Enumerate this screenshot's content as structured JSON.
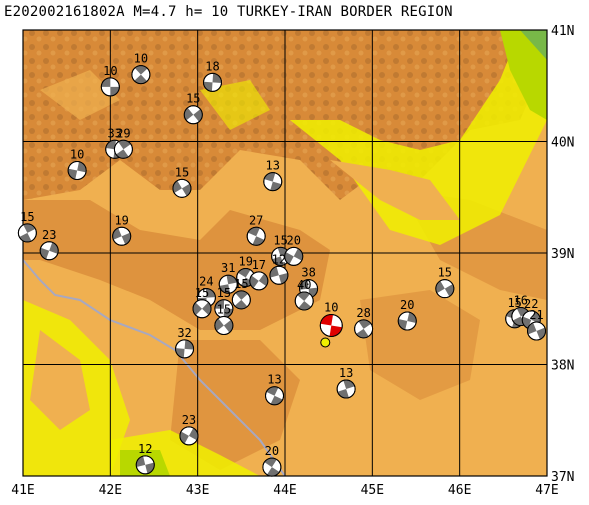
{
  "title": "E202002161802A M=4.7 h= 10 TURKEY-IRAN BORDER REGION",
  "colors": {
    "lowland": "#f0f000",
    "lowland_green": "#b8d800",
    "plain": "#f0b050",
    "upland": "#d88a38",
    "mountain": "#c07830",
    "grid": "#000000",
    "border": "#a8a8c0",
    "mechanism_fill": "#707070",
    "main_event_fill": "#e00000"
  },
  "map": {
    "lon_range": [
      41,
      47
    ],
    "lat_range": [
      37,
      41
    ],
    "x_ticks": [
      "41E",
      "42E",
      "43E",
      "44E",
      "45E",
      "46E",
      "47E"
    ],
    "y_ticks": [
      "41N",
      "40N",
      "39N",
      "38N",
      "37N"
    ]
  },
  "events": [
    {
      "lon": 42.0,
      "lat": 40.49,
      "depth": "10"
    },
    {
      "lon": 42.35,
      "lat": 40.6,
      "depth": "10"
    },
    {
      "lon": 43.17,
      "lat": 40.53,
      "depth": "18"
    },
    {
      "lon": 42.95,
      "lat": 40.24,
      "depth": "15"
    },
    {
      "lon": 42.05,
      "lat": 39.93,
      "depth": "33"
    },
    {
      "lon": 42.15,
      "lat": 39.93,
      "depth": "29"
    },
    {
      "lon": 41.62,
      "lat": 39.74,
      "depth": "10"
    },
    {
      "lon": 42.82,
      "lat": 39.58,
      "depth": "15"
    },
    {
      "lon": 43.86,
      "lat": 39.64,
      "depth": "13"
    },
    {
      "lon": 41.05,
      "lat": 39.18,
      "depth": "15"
    },
    {
      "lon": 41.3,
      "lat": 39.02,
      "depth": "23"
    },
    {
      "lon": 42.13,
      "lat": 39.15,
      "depth": "19"
    },
    {
      "lon": 43.67,
      "lat": 39.15,
      "depth": "27"
    },
    {
      "lon": 43.95,
      "lat": 38.97,
      "depth": "15"
    },
    {
      "lon": 44.1,
      "lat": 38.97,
      "depth": "20"
    },
    {
      "lon": 43.93,
      "lat": 38.8,
      "depth": "12"
    },
    {
      "lon": 43.55,
      "lat": 38.78,
      "depth": "19"
    },
    {
      "lon": 43.35,
      "lat": 38.72,
      "depth": "31"
    },
    {
      "lon": 43.7,
      "lat": 38.75,
      "depth": "17"
    },
    {
      "lon": 44.27,
      "lat": 38.68,
      "depth": "38"
    },
    {
      "lon": 44.22,
      "lat": 38.57,
      "depth": "40"
    },
    {
      "lon": 43.1,
      "lat": 38.6,
      "depth": "24"
    },
    {
      "lon": 43.05,
      "lat": 38.5,
      "depth": "15"
    },
    {
      "lon": 43.3,
      "lat": 38.5,
      "depth": "15"
    },
    {
      "lon": 43.5,
      "lat": 38.58,
      "depth": "15"
    },
    {
      "lon": 42.85,
      "lat": 38.14,
      "depth": "32"
    },
    {
      "lon": 43.3,
      "lat": 38.35,
      "depth": "15"
    },
    {
      "lon": 44.53,
      "lat": 38.35,
      "depth": "10",
      "main": true
    },
    {
      "lon": 44.9,
      "lat": 38.32,
      "depth": "28"
    },
    {
      "lon": 45.4,
      "lat": 38.39,
      "depth": "20"
    },
    {
      "lon": 45.83,
      "lat": 38.68,
      "depth": "15"
    },
    {
      "lon": 46.63,
      "lat": 38.41,
      "depth": "15"
    },
    {
      "lon": 46.7,
      "lat": 38.43,
      "depth": "16"
    },
    {
      "lon": 46.82,
      "lat": 38.4,
      "depth": "22"
    },
    {
      "lon": 46.88,
      "lat": 38.3,
      "depth": "21"
    },
    {
      "lon": 43.88,
      "lat": 37.72,
      "depth": "13"
    },
    {
      "lon": 44.7,
      "lat": 37.78,
      "depth": "13"
    },
    {
      "lon": 42.9,
      "lat": 37.36,
      "depth": "23"
    },
    {
      "lon": 42.4,
      "lat": 37.1,
      "depth": "12"
    },
    {
      "lon": 43.85,
      "lat": 37.08,
      "depth": "20"
    }
  ]
}
